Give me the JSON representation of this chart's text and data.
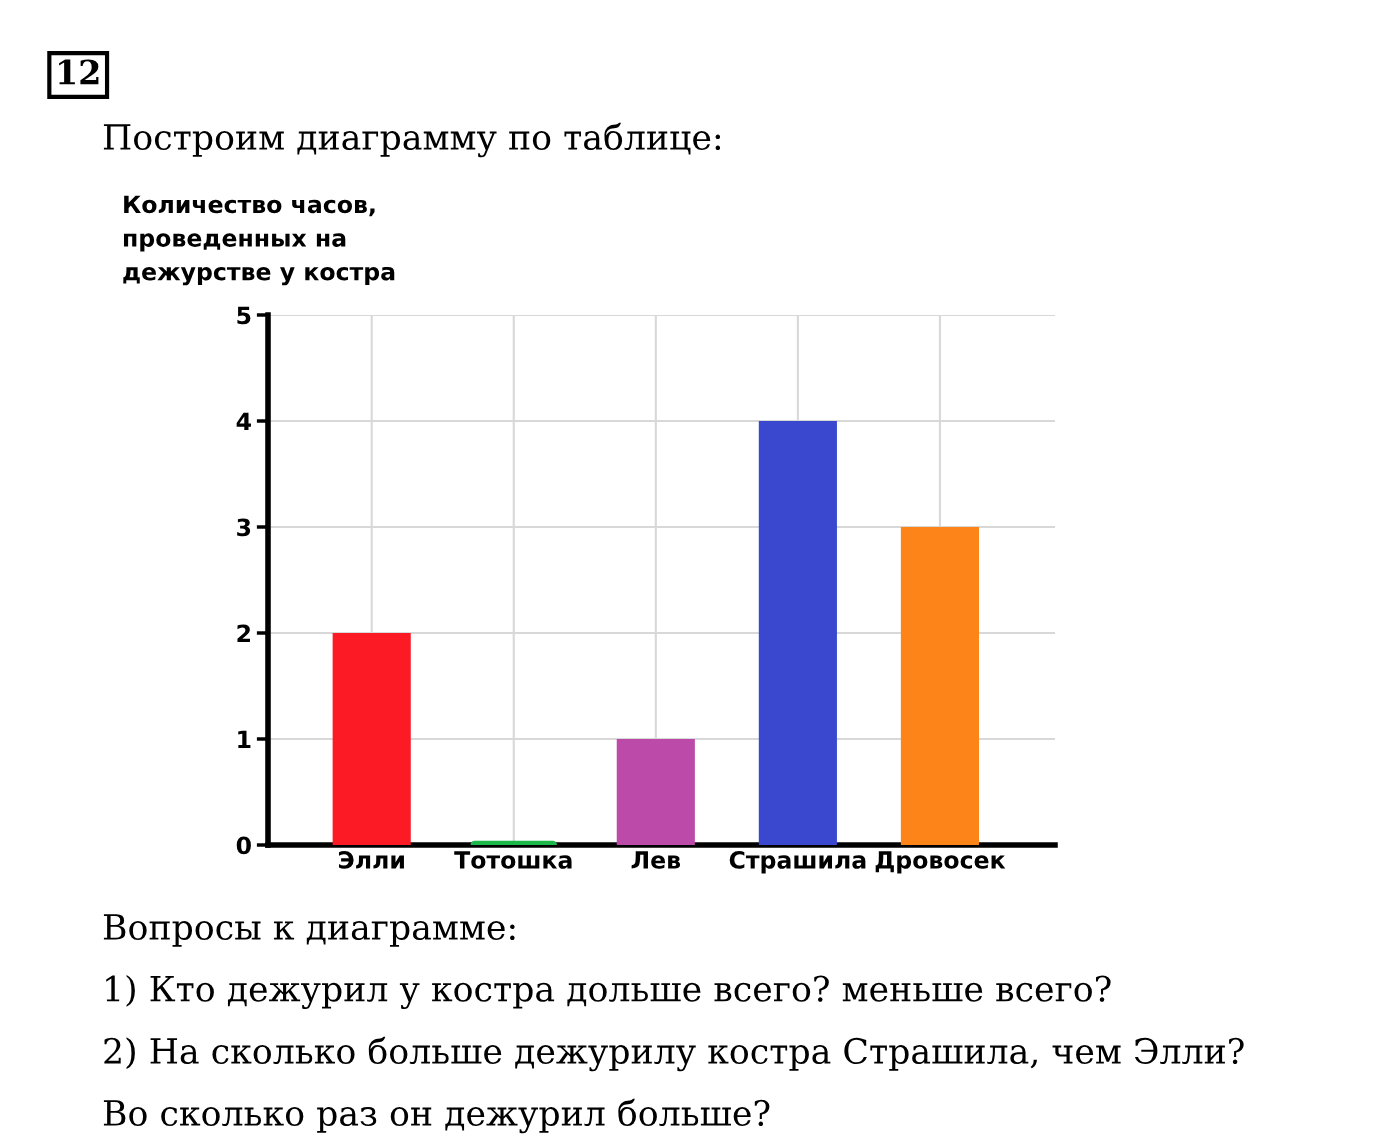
{
  "chart_data": {
    "type": "bar",
    "title": "Количество часов,\nпроведенных на\nдежурстве у костра",
    "categories": [
      "Элли",
      "Тотошка",
      "Лев",
      "Страшила",
      "Дровосек"
    ],
    "values": [
      2,
      0,
      1,
      4,
      3
    ],
    "colors": [
      "#fc1a24",
      "#1cb84a",
      "#bb4aa8",
      "#3a48d0",
      "#fc8418"
    ],
    "ylim": [
      0,
      5
    ],
    "yticks": [
      0,
      1,
      2,
      3,
      4,
      5
    ],
    "grid": true,
    "annotations": [
      "12",
      "Построим диаграмму по таблице:",
      "Вопросы к диаграмме:",
      "1) Кто дежурил у костра дольше всего? меньше всего?",
      "2) На сколько больше дежурилу костра Страшила, чем Элли?",
      "Во сколько раз он дежурил больше?"
    ]
  }
}
